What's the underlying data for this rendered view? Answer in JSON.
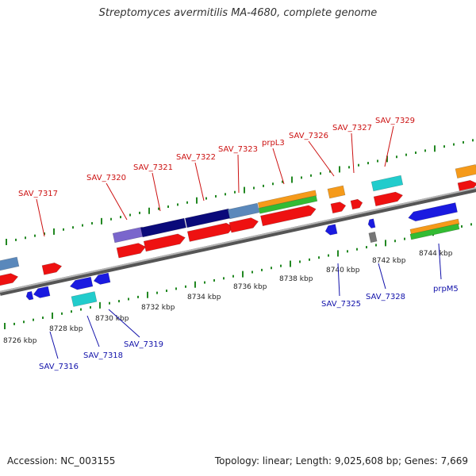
{
  "title": "Streptomyces avermitilis MA-4680, complete genome",
  "footer": {
    "accession": "Accession: NC_003155",
    "summary": "Topology: linear; Length: 9,025,608 bp; Genes: 7,669"
  },
  "axis": {
    "unit": "kbp",
    "labeled_ticks": [
      "8726 kbp",
      "8728 kbp",
      "8730 kbp",
      "8732 kbp",
      "8734 kbp",
      "8736 kbp",
      "8738 kbp",
      "8740 kbp",
      "8742 kbp",
      "8744 kbp"
    ]
  },
  "colors": {
    "red": "#ee1111",
    "blue": "#1a1ae0",
    "navy": "#0a0a7a",
    "steel": "#5a88bb",
    "lavender": "#7a66cc",
    "orange": "#f59a1a",
    "green": "#33bb33",
    "cyan": "#22cccc",
    "gray": "#777777",
    "label_top": "#cc1111",
    "label_bottom": "#1111aa",
    "tick": "#228822"
  },
  "top_labels": [
    "SAV_7317",
    "SAV_7320",
    "SAV_7321",
    "SAV_7322",
    "SAV_7323",
    "prpL3",
    "SAV_7326",
    "SAV_7327",
    "SAV_7329"
  ],
  "bottom_labels": [
    "SAV_7316",
    "SAV_7318",
    "SAV_7319",
    "SAV_7325",
    "SAV_7328",
    "prpM5"
  ]
}
